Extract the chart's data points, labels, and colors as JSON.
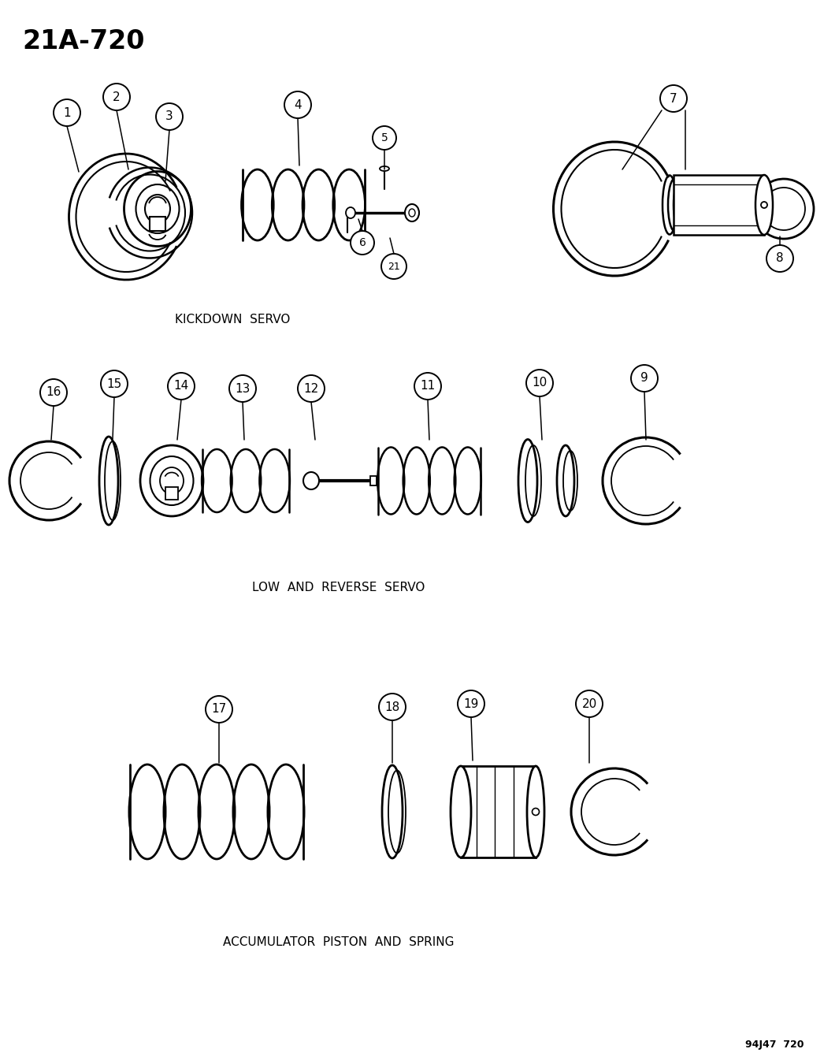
{
  "title": "21A-720",
  "bg_color": "#ffffff",
  "line_color": "#000000",
  "section_labels": {
    "kickdown": "KICKDOWN  SERVO",
    "low_reverse": "LOW  AND  REVERSE  SERVO",
    "accumulator": "ACCUMULATOR  PISTON  AND  SPRING"
  },
  "footnote": "94J47  720",
  "fig_width": 10.46,
  "fig_height": 13.45
}
